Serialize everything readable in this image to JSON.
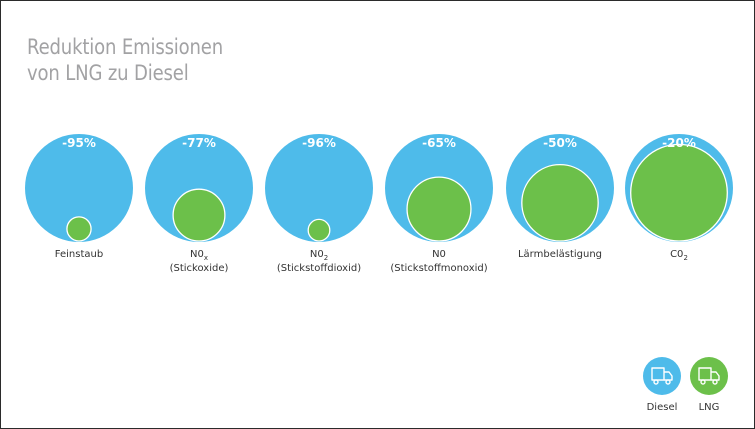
{
  "colors": {
    "diesel": "#4ebbea",
    "lng": "#6cc04a",
    "title": "#a2a2a4",
    "label": "#333333",
    "icon": "#ffffff"
  },
  "icons": {
    "diesel": "truck-icon",
    "lng": "truck-icon"
  },
  "chart_data": {
    "type": "bubble-comparison",
    "title": [
      "Reduktion Emissionen",
      "von LNG zu Diesel"
    ],
    "categories": [
      {
        "name": "Feinstaub",
        "sub": "Feinstaub",
        "main": "",
        "subscript": "",
        "line2": "",
        "reduction_label": "-95%",
        "reduction": 95
      },
      {
        "name": "NOx (Stickoxide)",
        "sub": "",
        "main": "N0",
        "subscript": "x",
        "line2": "(Stickoxide)",
        "reduction_label": "-77%",
        "reduction": 77
      },
      {
        "name": "NO2 (Stickstoffdioxid)",
        "sub": "",
        "main": "N0",
        "subscript": "2",
        "line2": "(Stickstoffdioxid)",
        "reduction_label": "-96%",
        "reduction": 96
      },
      {
        "name": "NO (Stickstoffmonoxid)",
        "sub": "",
        "main": "N0",
        "subscript": "",
        "line2": "(Stickstoffmonoxid)",
        "reduction_label": "-65%",
        "reduction": 65
      },
      {
        "name": "Lärmbelästigung",
        "sub": "Lärmbelästigung",
        "main": "",
        "subscript": "",
        "line2": "",
        "reduction_label": "-50%",
        "reduction": 50
      },
      {
        "name": "CO2",
        "sub": "",
        "main": "C0",
        "subscript": "2",
        "line2": "",
        "reduction_label": "-20%",
        "reduction": 20
      }
    ],
    "series": [
      {
        "name": "Diesel",
        "values": [
          100,
          100,
          100,
          100,
          100,
          100
        ]
      },
      {
        "name": "LNG",
        "values": [
          5,
          23,
          4,
          35,
          50,
          80
        ]
      }
    ],
    "legend": [
      "Diesel",
      "LNG"
    ],
    "legend_position": "bottom-right"
  }
}
